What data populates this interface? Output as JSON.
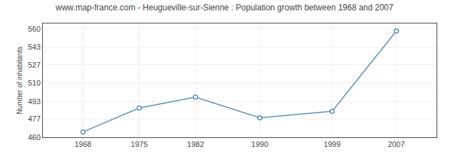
{
  "chart_data": {
    "type": "line",
    "title": "www.map-france.com - Heugueville-sur-Sienne : Population growth between 1968 and 2007",
    "ylabel": "Number of inhabitants",
    "x": [
      1968,
      1975,
      1982,
      1990,
      1999,
      2007
    ],
    "values": [
      465,
      487,
      497,
      478,
      484,
      558
    ],
    "color": "#5b8db8",
    "marker": "circle",
    "xlim": [
      1963,
      2012
    ],
    "xticks": [
      1968,
      1975,
      1982,
      1990,
      1999,
      2007
    ],
    "ylim": [
      460,
      565
    ],
    "yticks": [
      460,
      477,
      493,
      510,
      527,
      543,
      560
    ],
    "grid": true
  }
}
